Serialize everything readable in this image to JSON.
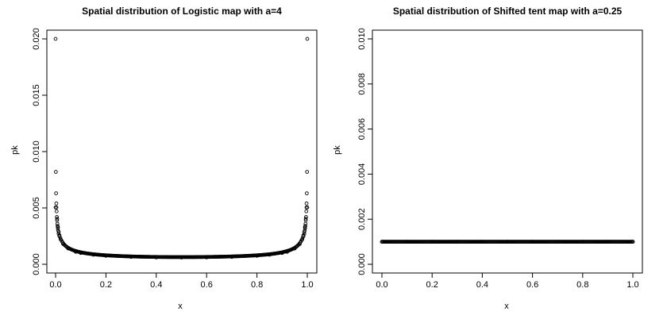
{
  "chart_data": [
    {
      "type": "scatter",
      "title": "Spatial distribution of Logistic map with a=4",
      "xlabel": "x",
      "ylabel": "pk",
      "xlim": [
        0,
        1
      ],
      "ylim": [
        0,
        0.02
      ],
      "x_ticks": [
        "0.0",
        "0.2",
        "0.4",
        "0.6",
        "0.8",
        "1.0"
      ],
      "y_ticks": [
        "0.000",
        "0.005",
        "0.010",
        "0.015",
        "0.020"
      ],
      "grid": false,
      "marker": "open-circle",
      "series": [
        {
          "x": [
            0.0,
            0.001,
            0.002,
            0.003,
            0.004,
            0.005,
            0.006,
            0.007,
            0.008,
            0.009,
            0.01,
            0.012,
            0.015,
            0.02,
            0.03,
            0.05,
            0.08,
            0.1,
            0.15,
            0.2,
            0.3,
            0.4,
            0.5,
            0.6,
            0.7,
            0.8,
            0.85,
            0.9,
            0.92,
            0.95,
            0.97,
            0.98,
            0.985,
            0.988,
            0.99,
            0.991,
            0.992,
            0.993,
            0.994,
            0.995,
            0.996,
            0.997,
            0.998,
            0.999,
            1.0
          ],
          "y": [
            0.02,
            0.0082,
            0.0063,
            0.0054,
            0.0047,
            0.0042,
            0.0039,
            0.0036,
            0.0034,
            0.0032,
            0.003,
            0.0027,
            0.0025,
            0.0022,
            0.0018,
            0.0014,
            0.0011,
            0.001,
            0.00085,
            0.00075,
            0.00065,
            0.00061,
            0.0006,
            0.00061,
            0.00065,
            0.00075,
            0.00085,
            0.001,
            0.0011,
            0.0014,
            0.0018,
            0.0022,
            0.0025,
            0.0027,
            0.003,
            0.0032,
            0.0034,
            0.0036,
            0.0039,
            0.0042,
            0.0047,
            0.0054,
            0.0063,
            0.0082,
            0.02
          ]
        }
      ]
    },
    {
      "type": "scatter",
      "title": "Spatial distribution of Shifted tent map with a=0.25",
      "xlabel": "x",
      "ylabel": "pk",
      "xlim": [
        0,
        1
      ],
      "ylim": [
        0,
        0.01
      ],
      "x_ticks": [
        "0.0",
        "0.2",
        "0.4",
        "0.6",
        "0.8",
        "1.0"
      ],
      "y_ticks": [
        "0.000",
        "0.002",
        "0.004",
        "0.006",
        "0.008",
        "0.010"
      ],
      "grid": false,
      "marker": "open-circle",
      "series": [
        {
          "x": [
            0.0,
            0.1,
            0.2,
            0.3,
            0.4,
            0.5,
            0.6,
            0.7,
            0.8,
            0.9,
            1.0
          ],
          "y": [
            0.001,
            0.001,
            0.001,
            0.001,
            0.001,
            0.001,
            0.001,
            0.001,
            0.001,
            0.001,
            0.001
          ]
        }
      ]
    }
  ]
}
